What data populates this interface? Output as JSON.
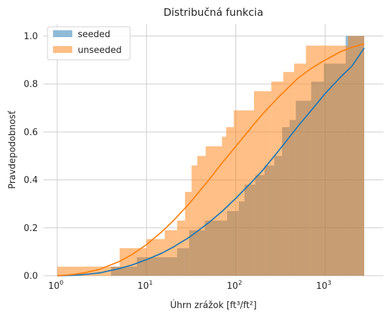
{
  "chart_data": {
    "type": "histogram",
    "title": "Distribučná funkcia",
    "xlabel": "Úhrn zrážok [ft³/ft²]",
    "ylabel": "Pravdepodobnosť",
    "xscale": "log",
    "xlim": [
      0.7,
      4500
    ],
    "ylim": [
      0.0,
      1.05
    ],
    "grid": true,
    "legend_position": "top-left",
    "x_ticks": [
      {
        "value": 1,
        "base": "10",
        "exp": "0"
      },
      {
        "value": 10,
        "base": "10",
        "exp": "1"
      },
      {
        "value": 100,
        "base": "10",
        "exp": "2"
      },
      {
        "value": 1000,
        "base": "10",
        "exp": "3"
      }
    ],
    "y_ticks": [
      "0.0",
      "0.2",
      "0.4",
      "0.6",
      "0.8",
      "1.0"
    ],
    "series": [
      {
        "name": "seeded",
        "color": "#1f77b4",
        "hist_color": "#8eb8d6",
        "hist_opacity": 0.5,
        "bins": [
          {
            "x0": 1.0,
            "x1": 4.0,
            "y": 0.0
          },
          {
            "x0": 4.0,
            "x1": 7.8,
            "y": 0.038
          },
          {
            "x0": 7.8,
            "x1": 12.0,
            "y": 0.077
          },
          {
            "x0": 12.0,
            "x1": 22.0,
            "y": 0.077
          },
          {
            "x0": 22.0,
            "x1": 30.0,
            "y": 0.115
          },
          {
            "x0": 30.0,
            "x1": 45.0,
            "y": 0.19
          },
          {
            "x0": 45.0,
            "x1": 80.0,
            "y": 0.23
          },
          {
            "x0": 80.0,
            "x1": 108.0,
            "y": 0.27
          },
          {
            "x0": 108.0,
            "x1": 125.0,
            "y": 0.31
          },
          {
            "x0": 125.0,
            "x1": 165.0,
            "y": 0.38
          },
          {
            "x0": 165.0,
            "x1": 210.0,
            "y": 0.42
          },
          {
            "x0": 210.0,
            "x1": 270.0,
            "y": 0.46
          },
          {
            "x0": 270.0,
            "x1": 330.0,
            "y": 0.5
          },
          {
            "x0": 330.0,
            "x1": 400.0,
            "y": 0.62
          },
          {
            "x0": 400.0,
            "x1": 470.0,
            "y": 0.65
          },
          {
            "x0": 470.0,
            "x1": 700.0,
            "y": 0.73
          },
          {
            "x0": 700.0,
            "x1": 970.0,
            "y": 0.81
          },
          {
            "x0": 970.0,
            "x1": 1700.0,
            "y": 0.885
          },
          {
            "x0": 1700.0,
            "x1": 2740.0,
            "y": 1.0
          }
        ],
        "cdf_fit": {
          "x": [
            1,
            1.5,
            2,
            3,
            5,
            7,
            10,
            15,
            20,
            30,
            50,
            70,
            100,
            150,
            200,
            300,
            500,
            700,
            1000,
            1500,
            2000,
            2740
          ],
          "y": [
            0.0,
            0.002,
            0.005,
            0.012,
            0.03,
            0.046,
            0.067,
            0.095,
            0.12,
            0.16,
            0.222,
            0.268,
            0.323,
            0.39,
            0.44,
            0.52,
            0.625,
            0.69,
            0.76,
            0.83,
            0.875,
            0.95
          ]
        }
      },
      {
        "name": "unseeded",
        "color": "#ff7f0e",
        "hist_color": "#ffbe86",
        "hist_opacity": 0.5,
        "bins": [
          {
            "x0": 1.0,
            "x1": 4.0,
            "y": 0.038
          },
          {
            "x0": 4.0,
            "x1": 5.0,
            "y": 0.038
          },
          {
            "x0": 5.0,
            "x1": 10.0,
            "y": 0.115
          },
          {
            "x0": 10.0,
            "x1": 16.0,
            "y": 0.153
          },
          {
            "x0": 16.0,
            "x1": 22.0,
            "y": 0.19
          },
          {
            "x0": 22.0,
            "x1": 27.0,
            "y": 0.23
          },
          {
            "x0": 27.0,
            "x1": 32.0,
            "y": 0.35
          },
          {
            "x0": 32.0,
            "x1": 37.0,
            "y": 0.46
          },
          {
            "x0": 37.0,
            "x1": 46.0,
            "y": 0.5
          },
          {
            "x0": 46.0,
            "x1": 70.0,
            "y": 0.54
          },
          {
            "x0": 70.0,
            "x1": 78.0,
            "y": 0.58
          },
          {
            "x0": 78.0,
            "x1": 95.0,
            "y": 0.62
          },
          {
            "x0": 95.0,
            "x1": 160.0,
            "y": 0.69
          },
          {
            "x0": 160.0,
            "x1": 250.0,
            "y": 0.77
          },
          {
            "x0": 250.0,
            "x1": 340.0,
            "y": 0.81
          },
          {
            "x0": 340.0,
            "x1": 450.0,
            "y": 0.85
          },
          {
            "x0": 450.0,
            "x1": 610.0,
            "y": 0.885
          },
          {
            "x0": 610.0,
            "x1": 1800.0,
            "y": 0.96
          },
          {
            "x0": 1800.0,
            "x1": 2740.0,
            "y": 1.0
          }
        ],
        "cdf_fit": {
          "x": [
            1,
            1.5,
            2,
            3,
            5,
            7,
            10,
            15,
            20,
            30,
            50,
            70,
            100,
            150,
            200,
            300,
            500,
            700,
            1000,
            1500,
            2000,
            2740
          ],
          "y": [
            0.0,
            0.005,
            0.012,
            0.027,
            0.06,
            0.09,
            0.13,
            0.185,
            0.23,
            0.3,
            0.4,
            0.47,
            0.54,
            0.62,
            0.675,
            0.745,
            0.825,
            0.865,
            0.9,
            0.935,
            0.953,
            0.968
          ]
        }
      }
    ]
  }
}
